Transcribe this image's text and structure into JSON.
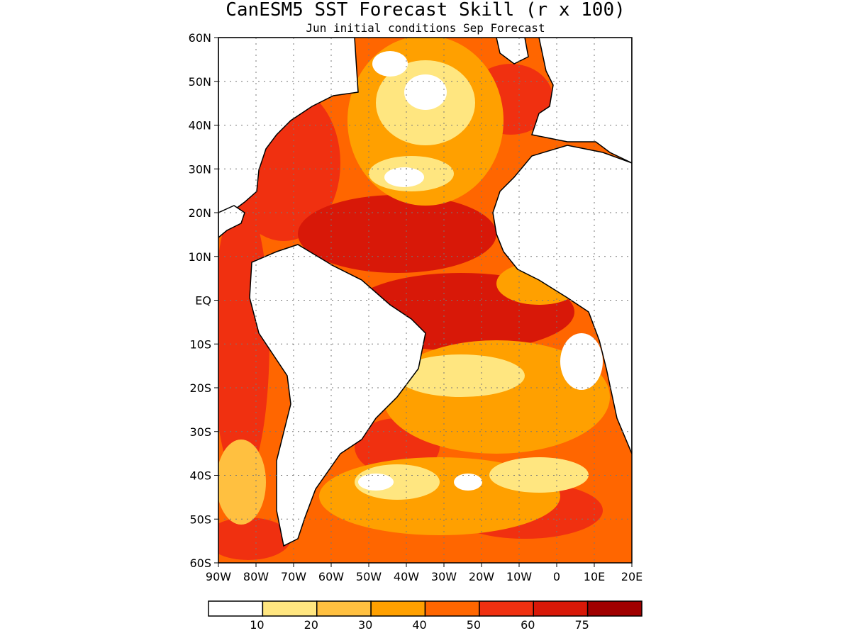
{
  "title": "CanESM5 SST Forecast Skill (r x 100)",
  "subtitle": "Jun initial conditions  Sep Forecast",
  "map": {
    "lon_range": [
      -90,
      20
    ],
    "lat_range": [
      -60,
      60
    ],
    "lat_labels": [
      "60N",
      "50N",
      "40N",
      "30N",
      "20N",
      "10N",
      "EQ",
      "10S",
      "20S",
      "30S",
      "40S",
      "50S",
      "60S"
    ],
    "lon_labels": [
      "90W",
      "80W",
      "70W",
      "60W",
      "50W",
      "40W",
      "30W",
      "20W",
      "10W",
      "0",
      "10E",
      "20E"
    ],
    "gridlines": "dotted",
    "ocean_base_color": "#ff6600"
  },
  "colorbar": {
    "labels": [
      "10",
      "20",
      "30",
      "40",
      "50",
      "60",
      "75"
    ],
    "colors": [
      "#ffffff",
      "#ffe680",
      "#ffc040",
      "#ffa000",
      "#ff6600",
      "#f03010",
      "#d81808",
      "#a00000"
    ]
  }
}
